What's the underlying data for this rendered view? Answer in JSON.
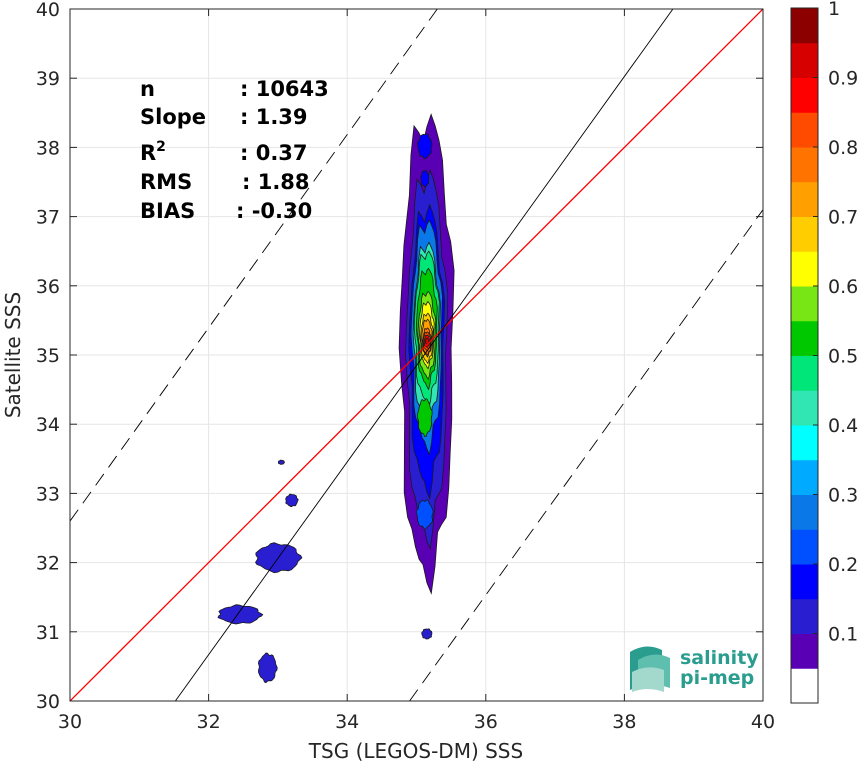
{
  "chart_data": {
    "type": "heatmap",
    "xlabel": "TSG (LEGOS-DM) SSS",
    "ylabel": "Satellite SSS",
    "xlim": [
      30,
      40
    ],
    "ylim": [
      30,
      40
    ],
    "xticks": [
      "30",
      "32",
      "34",
      "36",
      "38",
      "40"
    ],
    "yticks": [
      "30",
      "31",
      "32",
      "33",
      "34",
      "35",
      "36",
      "37",
      "38",
      "39",
      "40"
    ],
    "grid": true,
    "lines": [
      {
        "kind": "1:1",
        "color": "#ff0000",
        "x": [
          30,
          40
        ],
        "y": [
          30,
          40
        ]
      },
      {
        "kind": "regression",
        "color": "#000000",
        "x": [
          31.52,
          38.7
        ],
        "y": [
          30,
          40
        ]
      },
      {
        "kind": "upper-bound",
        "color": "#000000",
        "dash": true,
        "x": [
          30,
          35.3
        ],
        "y": [
          32.6,
          40
        ]
      },
      {
        "kind": "lower-bound",
        "color": "#000000",
        "dash": true,
        "x": [
          34.9,
          40
        ],
        "y": [
          30,
          37.1
        ]
      }
    ],
    "density": {
      "peak": [
        35.15,
        35.2
      ],
      "levels": [
        0.05,
        0.15,
        0.25,
        0.35,
        0.45,
        0.55,
        0.65,
        0.75,
        0.85,
        0.95
      ]
    },
    "stats": [
      {
        "label": "n",
        "value": ": 10643"
      },
      {
        "label": "Slope",
        "value": ": 1.39"
      },
      {
        "label": "R",
        "sup": "2",
        "value": ": 0.37"
      },
      {
        "label": "RMS",
        "value": ": 1.88"
      },
      {
        "label": "BIAS",
        "value": ": -0.30"
      }
    ],
    "colorbar": {
      "ticks": [
        "0.1",
        "0.2",
        "0.3",
        "0.4",
        "0.5",
        "0.6",
        "0.7",
        "0.8",
        "0.9",
        "1"
      ],
      "colors": [
        "#ffffff",
        "#5a00b4",
        "#2a1fd0",
        "#0000ff",
        "#0050ff",
        "#0a78e6",
        "#00aaff",
        "#00ffff",
        "#32e6b4",
        "#00e678",
        "#00c800",
        "#78e614",
        "#ffff00",
        "#ffcd00",
        "#ffa000",
        "#ff7300",
        "#ff4b00",
        "#ff0000",
        "#d70000",
        "#8c0000"
      ]
    }
  },
  "logo": {
    "line1": "salinity",
    "line2": "pi-mep"
  }
}
